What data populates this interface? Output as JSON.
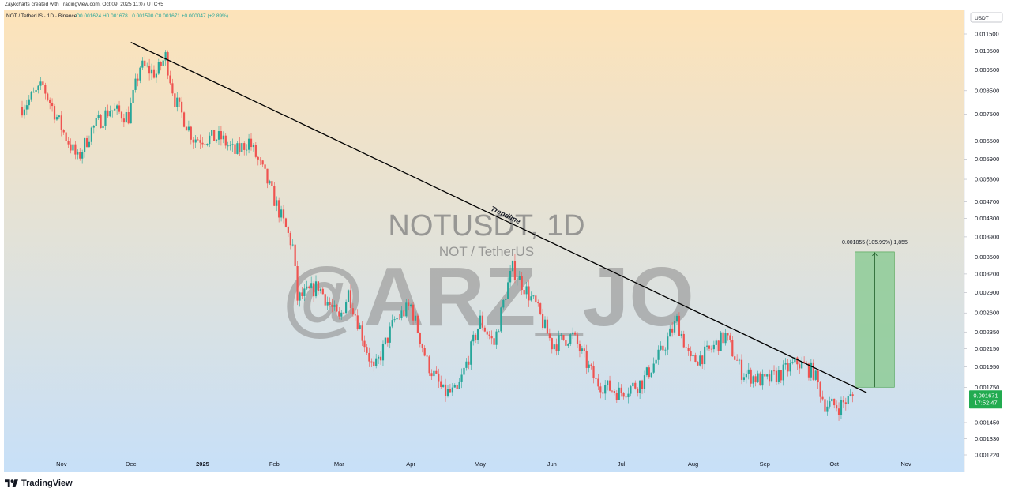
{
  "credit_text": "Zaykcharts created with TradingView.com, Oct 09, 2025 11:07 UTC+5",
  "header": {
    "symbol_text": "NOT / TetherUS · 1D · Binance",
    "ohlc_values": "O0.001624  H0.001678  L0.001590  C0.001671  +0.000047 (+2.89%)"
  },
  "currency_button": "USDT",
  "watermark": {
    "symbol": "NOTUSDT, 1D",
    "name": "NOT / TetherUS",
    "handle": "@ARZ_JO"
  },
  "trendline_label": "Trendline",
  "measure_label": "0.001855 (105.99%) 1,855",
  "price_tag": {
    "price": "0.001671",
    "countdown": "17:52:47"
  },
  "footer_logo": "TradingView",
  "colors": {
    "up": "#26a69a",
    "down": "#ef5350",
    "price_tag": "#22ab50",
    "measure_fill": "#8ecb96",
    "bg_top": "#fde3b9",
    "bg_bottom": "#c7e0f8"
  },
  "icons": {
    "logo": "tradingview-logo-icon"
  },
  "chart_data": {
    "type": "candlestick",
    "title": "NOT / TetherUS · 1D · Binance",
    "ylabel": "",
    "xlabel": "",
    "y_scale": "log",
    "ylim": [
      0.00115,
      0.0125
    ],
    "y_ticks": [
      "0.011500",
      "0.010500",
      "0.009500",
      "0.008500",
      "0.007500",
      "0.006500",
      "0.005900",
      "0.005300",
      "0.004700",
      "0.004300",
      "0.003900",
      "0.003500",
      "0.003200",
      "0.002900",
      "0.002600",
      "0.002350",
      "0.002150",
      "0.001950",
      "0.001750",
      "0.001450",
      "0.001330",
      "0.001220"
    ],
    "x_ticks": [
      "Nov",
      "Dec",
      "2025",
      "Feb",
      "Mar",
      "Apr",
      "May",
      "Jun",
      "Jul",
      "Aug",
      "Sep",
      "Oct",
      "Nov"
    ],
    "x_range": [
      "2024-10-15",
      "2025-11-15"
    ],
    "anchors": [
      [
        "2024-10-15",
        0.0078
      ],
      [
        "2024-10-24",
        0.0087
      ],
      [
        "2024-11-02",
        0.0068
      ],
      [
        "2024-11-08",
        0.0059
      ],
      [
        "2024-11-14",
        0.0069
      ],
      [
        "2024-11-22",
        0.0077
      ],
      [
        "2024-11-30",
        0.0074
      ],
      [
        "2024-12-05",
        0.0097
      ],
      [
        "2024-12-12",
        0.0093
      ],
      [
        "2024-12-16",
        0.0102
      ],
      [
        "2024-12-20",
        0.0081
      ],
      [
        "2024-12-28",
        0.0066
      ],
      [
        "2025-01-09",
        0.0066
      ],
      [
        "2025-01-15",
        0.0061
      ],
      [
        "2025-01-21",
        0.0065
      ],
      [
        "2025-01-28",
        0.0054
      ],
      [
        "2025-02-05",
        0.0042
      ],
      [
        "2025-02-09",
        0.0037
      ],
      [
        "2025-02-11",
        0.0028
      ],
      [
        "2025-02-20",
        0.003
      ],
      [
        "2025-03-01",
        0.0025
      ],
      [
        "2025-03-05",
        0.0029
      ],
      [
        "2025-03-10",
        0.0024
      ],
      [
        "2025-03-16",
        0.0019
      ],
      [
        "2025-03-25",
        0.0025
      ],
      [
        "2025-04-01",
        0.0027
      ],
      [
        "2025-04-08",
        0.002
      ],
      [
        "2025-04-15",
        0.0017
      ],
      [
        "2025-04-21",
        0.0017
      ],
      [
        "2025-05-01",
        0.0025
      ],
      [
        "2025-05-07",
        0.0022
      ],
      [
        "2025-05-12",
        0.0029
      ],
      [
        "2025-05-15",
        0.0033
      ],
      [
        "2025-05-25",
        0.0027
      ],
      [
        "2025-06-01",
        0.0022
      ],
      [
        "2025-06-10",
        0.0023
      ],
      [
        "2025-06-20",
        0.0018
      ],
      [
        "2025-06-30",
        0.0017
      ],
      [
        "2025-07-10",
        0.0018
      ],
      [
        "2025-07-18",
        0.0021
      ],
      [
        "2025-07-25",
        0.0025
      ],
      [
        "2025-07-31",
        0.002
      ],
      [
        "2025-08-07",
        0.0021
      ],
      [
        "2025-08-15",
        0.0023
      ],
      [
        "2025-08-22",
        0.0019
      ],
      [
        "2025-09-01",
        0.0018
      ],
      [
        "2025-09-09",
        0.0019
      ],
      [
        "2025-09-15",
        0.002
      ],
      [
        "2025-09-22",
        0.0019
      ],
      [
        "2025-09-27",
        0.0016
      ],
      [
        "2025-10-03",
        0.00158
      ],
      [
        "2025-10-09",
        0.001671
      ]
    ],
    "trendline": [
      [
        "2024-12-01",
        0.011
      ],
      [
        "2025-10-15",
        0.0017
      ]
    ],
    "measure": {
      "from_date": "2025-10-10",
      "to_date": "2025-10-27",
      "low": 0.00175,
      "high": 0.0036,
      "change": "0.001855 (105.99%)",
      "bars": "1,855"
    }
  }
}
